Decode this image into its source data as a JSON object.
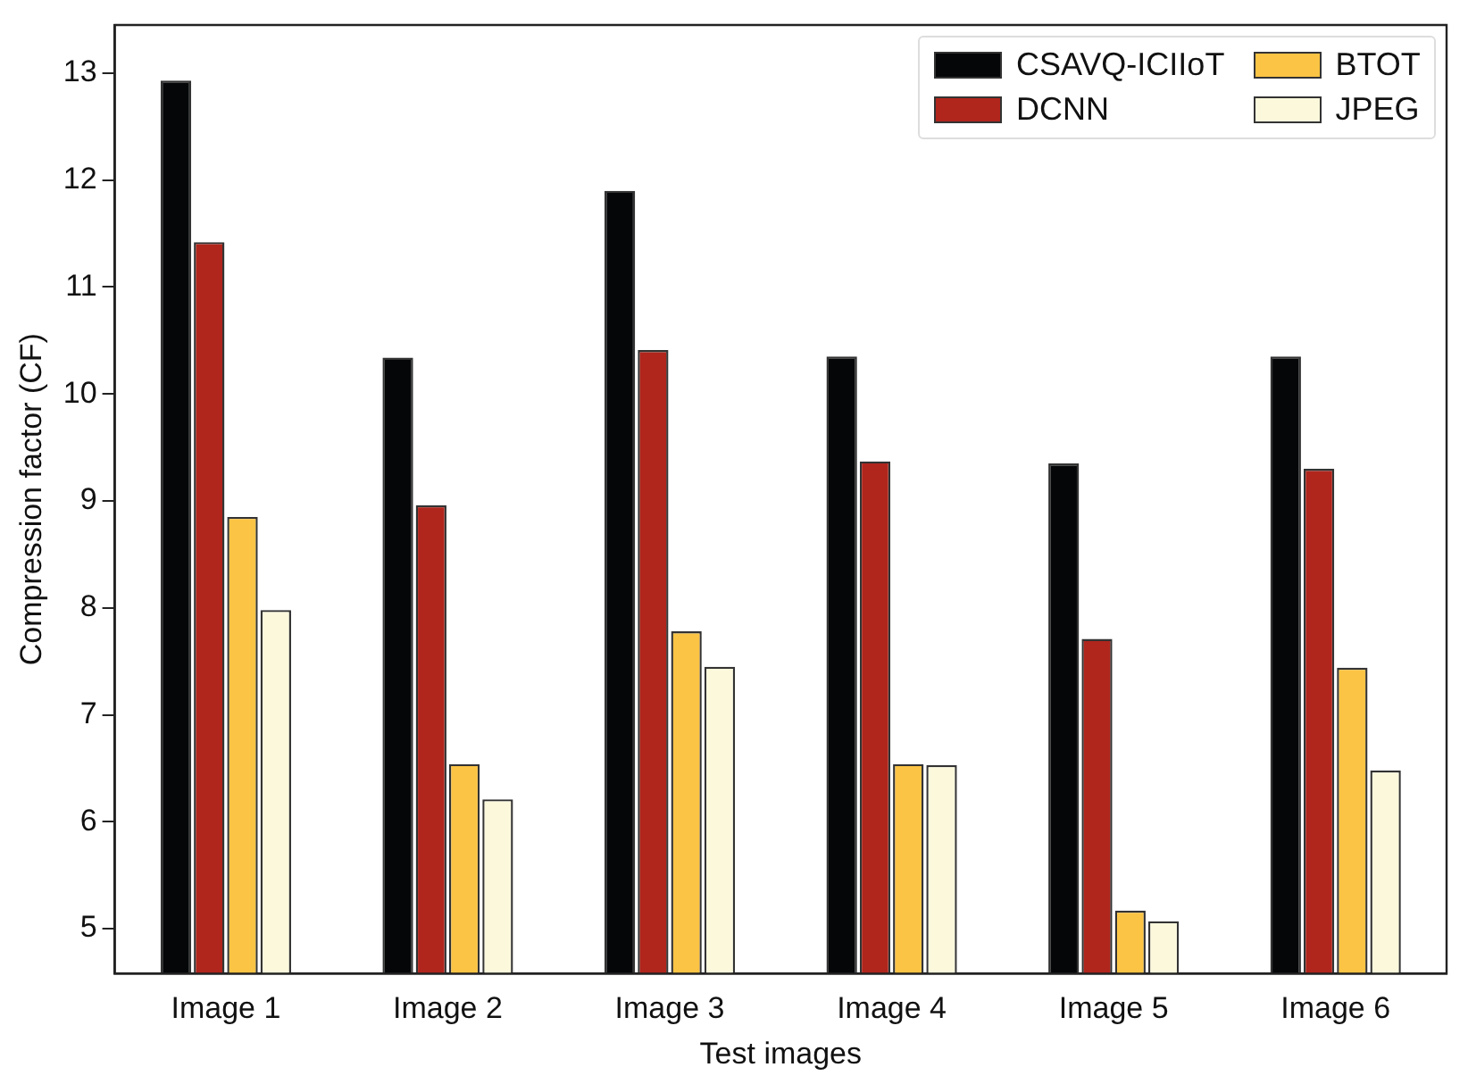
{
  "chart_data": {
    "type": "bar",
    "xlabel": "Test images",
    "ylabel": "Compression factor (CF)",
    "categories": [
      "Image 1",
      "Image 2",
      "Image 3",
      "Image 4",
      "Image 5",
      "Image 6"
    ],
    "series": [
      {
        "name": "CSAVQ-ICIIoT",
        "color": "#040608",
        "values": [
          12.93,
          10.34,
          11.9,
          10.35,
          9.35,
          10.35
        ]
      },
      {
        "name": "DCNN",
        "color": "#b0251c",
        "values": [
          11.42,
          8.96,
          10.41,
          9.37,
          7.71,
          9.3
        ]
      },
      {
        "name": "BTOT",
        "color": "#fcc444",
        "values": [
          8.85,
          6.54,
          7.78,
          6.54,
          5.17,
          7.44
        ]
      },
      {
        "name": "JPEG",
        "color": "#fcf8dc",
        "values": [
          7.98,
          6.21,
          7.45,
          6.53,
          5.07,
          6.48
        ]
      }
    ],
    "ylim": [
      4.58,
      13.45
    ],
    "yticks": [
      5,
      6,
      7,
      8,
      9,
      10,
      11,
      12,
      13
    ],
    "grid": false,
    "legend": "top right"
  }
}
